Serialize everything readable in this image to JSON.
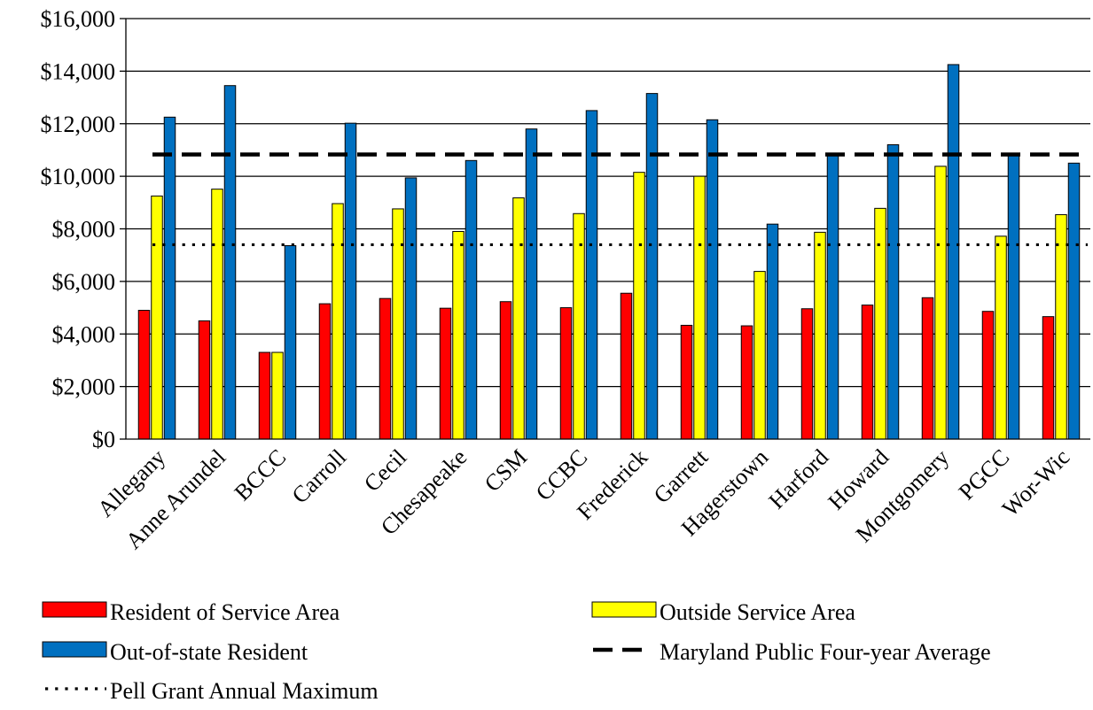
{
  "chart_data": {
    "type": "bar",
    "title": "",
    "xlabel": "",
    "ylabel": "",
    "ylim": [
      0,
      16000
    ],
    "yticks": [
      0,
      2000,
      4000,
      6000,
      8000,
      10000,
      12000,
      14000,
      16000
    ],
    "ytick_labels": [
      "$0",
      "$2,000",
      "$4,000",
      "$6,000",
      "$8,000",
      "$10,000",
      "$12,000",
      "$14,000",
      "$16,000"
    ],
    "grid": "horizontal",
    "categories": [
      "Allegany",
      "Anne Arundel",
      "BCCC",
      "Carroll",
      "Cecil",
      "Chesapeake",
      "CSM",
      "CCBC",
      "Frederick",
      "Garrett",
      "Hagerstown",
      "Harford",
      "Howard",
      "Montgomery",
      "PGCC",
      "Wor-Wic"
    ],
    "series": [
      {
        "name": "Resident of Service Area",
        "color": "#ff0000",
        "values": [
          4900,
          4500,
          3300,
          5150,
          5350,
          4980,
          5230,
          5000,
          5550,
          4330,
          4310,
          4960,
          5100,
          5380,
          4860,
          4660
        ]
      },
      {
        "name": "Outside Service Area",
        "color": "#ffff00",
        "values": [
          9250,
          9510,
          3300,
          8960,
          8760,
          7900,
          9180,
          8580,
          10150,
          10000,
          6380,
          7870,
          8780,
          10380,
          7720,
          8540
        ]
      },
      {
        "name": "Out-of-state Resident",
        "color": "#0070c0",
        "values": [
          12250,
          13450,
          7360,
          12020,
          9940,
          10600,
          11800,
          12500,
          13150,
          12150,
          8180,
          10820,
          11200,
          14250,
          10820,
          10500
        ]
      }
    ],
    "reference_lines": [
      {
        "name": "Maryland Public Four-year Average",
        "value": 10830,
        "style": "dashed"
      },
      {
        "name": "Pell Grant Annual Maximum",
        "value": 7395,
        "style": "dotted"
      }
    ],
    "legend_position": "bottom"
  }
}
